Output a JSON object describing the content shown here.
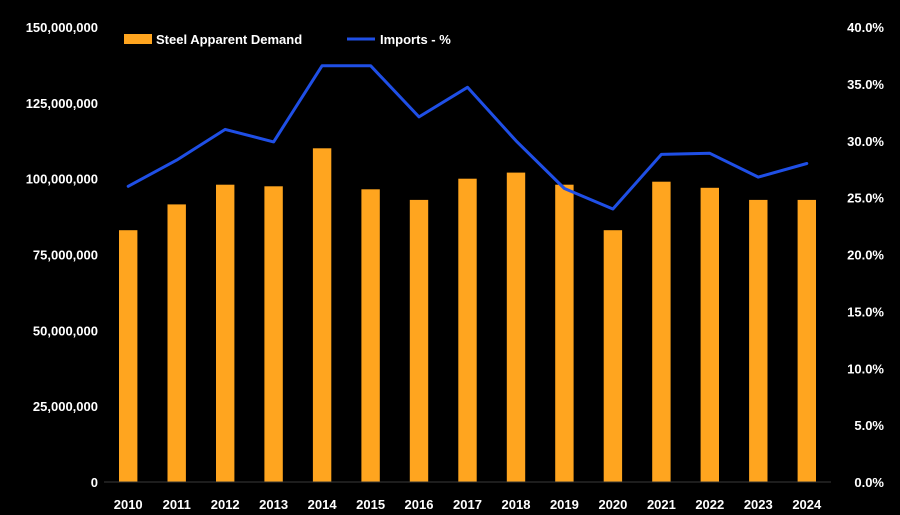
{
  "chart_data": {
    "type": "bar",
    "categories": [
      "2010",
      "2011",
      "2012",
      "2013",
      "2014",
      "2015",
      "2016",
      "2017",
      "2018",
      "2019",
      "2020",
      "2021",
      "2022",
      "2023",
      "2024"
    ],
    "series": [
      {
        "name": "Steel Apparent Demand",
        "type": "bar",
        "axis": "left",
        "color": "#FFA51F",
        "values": [
          83000000,
          91500000,
          98000000,
          97500000,
          110000000,
          96500000,
          93000000,
          100000000,
          102000000,
          98000000,
          83000000,
          99000000,
          97000000,
          93000000,
          93000000
        ]
      },
      {
        "name": "Imports - %",
        "type": "line",
        "axis": "right",
        "color": "#1F4FE6",
        "values": [
          26.0,
          28.3,
          31.0,
          29.9,
          36.6,
          36.6,
          32.1,
          34.7,
          30.0,
          25.8,
          24.0,
          28.8,
          28.9,
          26.8,
          28.0
        ]
      }
    ],
    "y_left": {
      "ylim": [
        0,
        150000000
      ],
      "ticks": [
        0,
        25000000,
        50000000,
        75000000,
        100000000,
        125000000,
        150000000
      ],
      "tick_labels": [
        "0",
        "25,000,000",
        "50,000,000",
        "75,000,000",
        "100,000,000",
        "125,000,000",
        "150,000,000"
      ]
    },
    "y_right": {
      "ylim": [
        0,
        40
      ],
      "ticks": [
        0,
        5,
        10,
        15,
        20,
        25,
        30,
        35,
        40
      ],
      "tick_labels": [
        "0.0%",
        "5.0%",
        "10.0%",
        "15.0%",
        "20.0%",
        "25.0%",
        "30.0%",
        "35.0%",
        "40.0%"
      ]
    },
    "legend": {
      "placement": "top-left"
    },
    "grid": false,
    "background": "#000000"
  }
}
